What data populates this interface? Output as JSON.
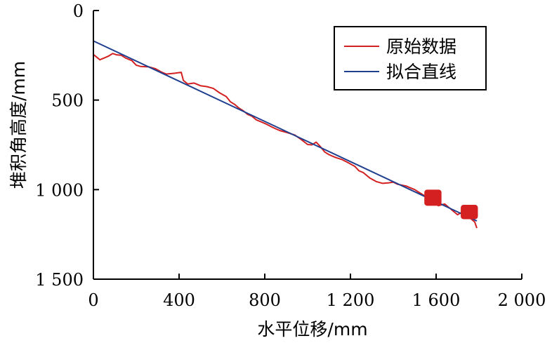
{
  "chart_data": {
    "type": "line",
    "xlabel": "水平位移/mm",
    "ylabel": "堆积角高度/mm",
    "xlim": [
      0,
      2000
    ],
    "ylim": [
      0,
      1500
    ],
    "y_inverted": true,
    "x_tick_labels": [
      "0",
      "400",
      "800",
      "1 200",
      "1 600",
      "2 000"
    ],
    "x_tick_values": [
      0,
      400,
      800,
      1200,
      1600,
      2000
    ],
    "y_tick_labels": [
      "0",
      "500",
      "1 000",
      "1 500"
    ],
    "y_tick_values": [
      0,
      500,
      1000,
      1500
    ],
    "grid": false,
    "legend_position": "top-right",
    "colors": {
      "raw": "#d42020",
      "fit": "#1f3f8f"
    },
    "series": [
      {
        "name": "原始数据",
        "color": "#d42020",
        "x": [
          0,
          30,
          50,
          70,
          90,
          110,
          130,
          150,
          180,
          200,
          220,
          260,
          290,
          320,
          340,
          380,
          410,
          420,
          440,
          470,
          500,
          530,
          560,
          590,
          620,
          640,
          660,
          680,
          700,
          720,
          740,
          760,
          780,
          800,
          830,
          850,
          870,
          900,
          940,
          970,
          1000,
          1020,
          1040,
          1060,
          1080,
          1100,
          1130,
          1160,
          1190,
          1220,
          1240,
          1260,
          1290,
          1320,
          1350,
          1380,
          1400,
          1420,
          1440,
          1460,
          1480,
          1500,
          1520,
          1540,
          1560,
          1590,
          1610,
          1640,
          1670,
          1700,
          1730,
          1760,
          1780,
          1790
        ],
        "y": [
          245,
          275,
          265,
          255,
          240,
          248,
          250,
          265,
          280,
          305,
          312,
          315,
          325,
          345,
          355,
          350,
          345,
          390,
          410,
          405,
          420,
          425,
          435,
          460,
          480,
          510,
          525,
          545,
          560,
          580,
          590,
          610,
          620,
          630,
          648,
          660,
          670,
          680,
          695,
          720,
          748,
          750,
          735,
          760,
          790,
          805,
          820,
          832,
          850,
          870,
          895,
          905,
          935,
          955,
          965,
          962,
          958,
          970,
          975,
          980,
          990,
          1000,
          1015,
          1030,
          1045,
          1060,
          1090,
          1080,
          1110,
          1140,
          1120,
          1160,
          1180,
          1215
        ]
      },
      {
        "name": "拟合直线",
        "color": "#1f3f8f",
        "x": [
          0,
          1790
        ],
        "y": [
          170,
          1175
        ]
      }
    ]
  }
}
